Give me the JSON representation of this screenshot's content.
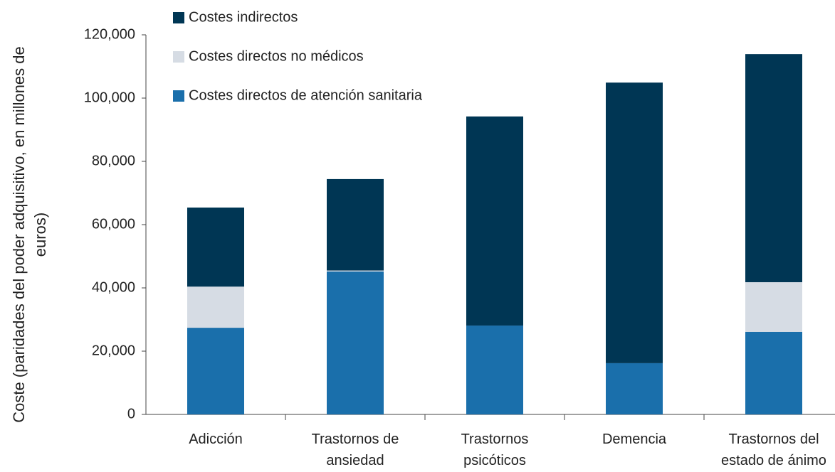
{
  "chart_data": {
    "type": "stacked_bar",
    "y_label": "Coste (paridades del poder adquisitivo, en millones de euros)",
    "categories": [
      "Adicción",
      "Trastornos de ansiedad",
      "Trastornos psicóticos",
      "Demencia",
      "Trastornos del estado de ánimo"
    ],
    "series": [
      {
        "name": "Costes directos de atención sanitaria",
        "color": "#1a6fab",
        "values": [
          27400,
          45200,
          28100,
          16200,
          26100
        ]
      },
      {
        "name": "Costes directos no médicos",
        "color": "#d6dce4",
        "values": [
          13000,
          300,
          0,
          0,
          15700
        ]
      },
      {
        "name": "Costes indirectos",
        "color": "#003654",
        "values": [
          25000,
          28900,
          66100,
          88700,
          72100
        ]
      }
    ],
    "ylim": [
      0,
      120000
    ],
    "yticks": [
      0,
      {
        "value": 20000,
        "label": "20,000"
      },
      {
        "value": 40000,
        "label": "40,000"
      },
      {
        "value": 60000,
        "label": "60,000"
      },
      {
        "value": 80000,
        "label": "80,000"
      },
      {
        "value": 100000,
        "label": "100,000"
      },
      {
        "value": 120000,
        "label": "120,000"
      }
    ]
  }
}
